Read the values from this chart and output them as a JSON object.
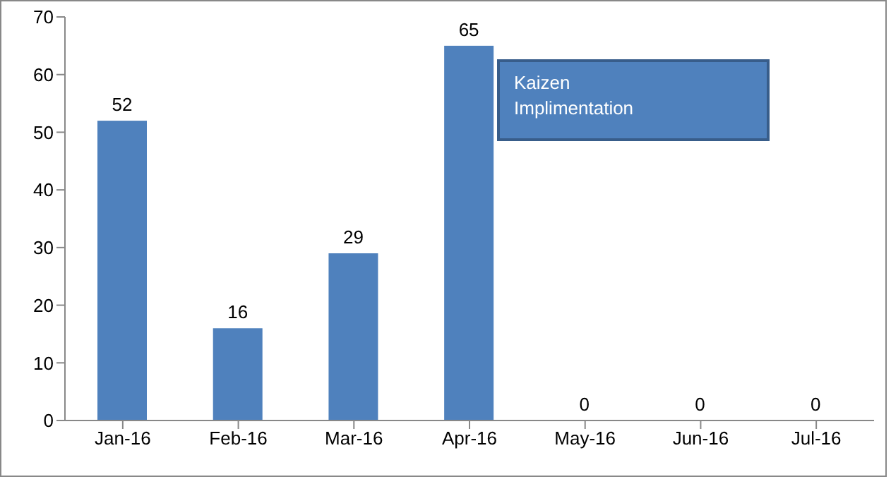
{
  "chart_data": {
    "type": "bar",
    "categories": [
      "Jan-16",
      "Feb-16",
      "Mar-16",
      "Apr-16",
      "May-16",
      "Jun-16",
      "Jul-16"
    ],
    "values": [
      52,
      16,
      29,
      65,
      0,
      0,
      0
    ],
    "color": "#4f81bd",
    "ylim": [
      0,
      70
    ],
    "yticks": [
      0,
      10,
      20,
      30,
      40,
      50,
      60,
      70
    ],
    "grid": false,
    "data_labels": true,
    "legend": false,
    "annotations": [
      "Kaizen Implimentation"
    ]
  }
}
